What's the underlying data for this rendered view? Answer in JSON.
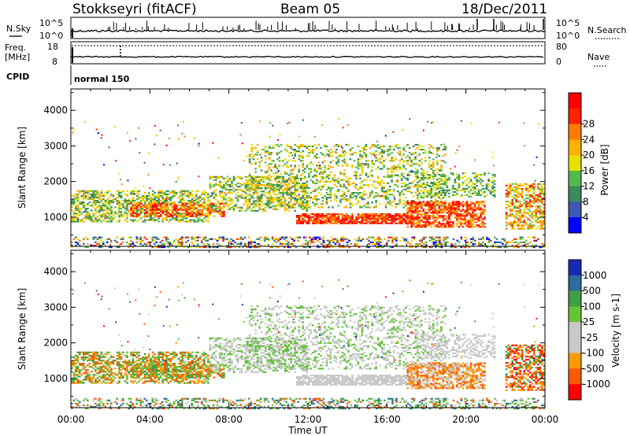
{
  "header": {
    "title": "Stokkseyri (fitACF)",
    "beam": "Beam 05",
    "date": "18/Dec/2011"
  },
  "panels": {
    "nsky_label": "N.Sky",
    "nsky_ticks": [
      "10^5",
      "10^0"
    ],
    "nsearch_label": "N.Search",
    "nsearch_ticks": [
      "10^5",
      "10^0"
    ],
    "freq_label_1": "Freq.",
    "freq_label_2": "[MHz]",
    "freq_ticks": [
      "18",
      "8"
    ],
    "nave_label": "Nave",
    "nave_ticks": [
      "80",
      "0"
    ],
    "cpid_label": "CPID",
    "cpid_value": "normal 150"
  },
  "colors": {
    "power_scale": [
      "#0000ff",
      "#3e57b8",
      "#3a8a5a",
      "#52b94d",
      "#e8e000",
      "#ffb000",
      "#ff7a00",
      "#ff2200",
      "#ff0000"
    ],
    "velocity_scale": [
      "#ff0000",
      "#ff5a00",
      "#ff9a00",
      "#c8c8c8",
      "#c8c8c8",
      "#62c336",
      "#3d9e46",
      "#2f6aa0",
      "#1a2ab0"
    ]
  },
  "chart_data": [
    {
      "type": "heatmap",
      "name": "power",
      "ylabel": "Slant Range [km]",
      "yticks": [
        1000,
        2000,
        3000,
        4000
      ],
      "colorbar_label": "Power [dB]",
      "colorbar_ticks": [
        4,
        8,
        12,
        16,
        20,
        24,
        28
      ],
      "ylim": [
        180,
        4600
      ],
      "xlim": [
        0,
        24
      ]
    },
    {
      "type": "heatmap",
      "name": "velocity",
      "ylabel": "Slant Range [km]",
      "yticks": [
        1000,
        2000,
        3000,
        4000
      ],
      "colorbar_label": "Velocity [m s-1]",
      "colorbar_ticks": [
        1000,
        500,
        100,
        25,
        -25,
        -100,
        -500,
        -1000
      ],
      "ylim": [
        180,
        4600
      ],
      "xlim": [
        0,
        24
      ]
    }
  ],
  "x_axis": {
    "ticks": [
      "00:00",
      "04:00",
      "08:00",
      "12:00",
      "16:00",
      "20:00",
      "00:00"
    ],
    "label": "Time UT"
  }
}
